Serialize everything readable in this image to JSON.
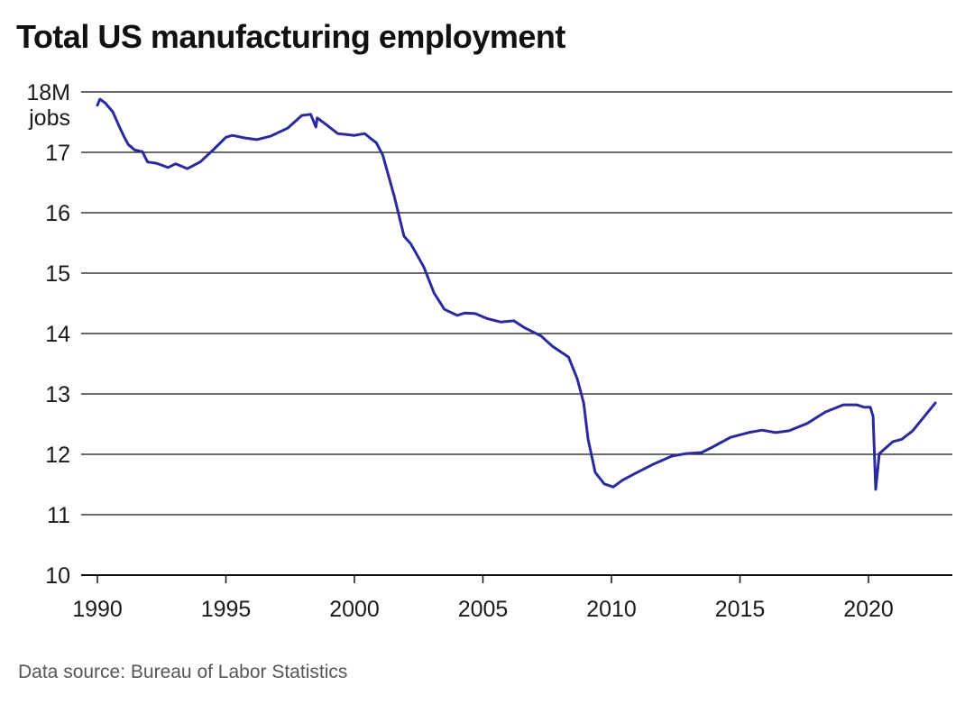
{
  "header": {
    "title": "Total US manufacturing employment"
  },
  "footer": {
    "source": "Data source: Bureau of Labor Statistics"
  },
  "colors": {
    "line": "#2a2a9e",
    "grid": "#111111",
    "source_text": "#555555"
  },
  "axes": {
    "y_unit_label": "jobs",
    "y_ticks": [
      "18M",
      "17",
      "16",
      "15",
      "14",
      "13",
      "12",
      "11",
      "10"
    ],
    "x_ticks": [
      "1990",
      "1995",
      "2000",
      "2005",
      "2010",
      "2015",
      "2020"
    ]
  },
  "chart_data": {
    "type": "line",
    "title": "Total US manufacturing employment",
    "xlabel": "",
    "ylabel": "Millions of jobs",
    "ylim": [
      10,
      18
    ],
    "xlim": [
      1990,
      2022.6
    ],
    "grid": "horizontal",
    "legend": null,
    "y_tick_labels": [
      "10",
      "11",
      "12",
      "13",
      "14",
      "15",
      "16",
      "17",
      "18M jobs"
    ],
    "x_tick_labels": [
      "1990",
      "1995",
      "2000",
      "2005",
      "2010",
      "2015",
      "2020"
    ],
    "source": "Bureau of Labor Statistics",
    "series": [
      {
        "name": "Total US manufacturing employment (millions)",
        "x": [
          1990.0,
          1990.1,
          1990.3,
          1990.6,
          1990.85,
          1991.05,
          1991.2,
          1991.45,
          1991.75,
          1991.95,
          1992.3,
          1992.75,
          1993.05,
          1993.5,
          1994.0,
          1994.55,
          1995.0,
          1995.25,
          1995.7,
          1996.2,
          1996.75,
          1997.4,
          1997.95,
          1998.3,
          1998.5,
          1998.55,
          1998.9,
          1999.35,
          2000.0,
          2000.4,
          2000.6,
          2000.85,
          2001.1,
          2001.55,
          2001.93,
          2002.2,
          2002.7,
          2003.1,
          2003.5,
          2004.0,
          2004.3,
          2004.7,
          2005.15,
          2005.7,
          2006.2,
          2006.6,
          2007.26,
          2007.7,
          2008.33,
          2008.67,
          2008.92,
          2009.09,
          2009.37,
          2009.72,
          2010.07,
          2010.42,
          2010.95,
          2011.65,
          2012.35,
          2012.88,
          2013.51,
          2013.93,
          2014.63,
          2015.33,
          2015.86,
          2016.39,
          2016.91,
          2017.61,
          2018.32,
          2019.02,
          2019.54,
          2019.82,
          2020.07,
          2020.18,
          2020.28,
          2020.42,
          2020.95,
          2021.3,
          2021.72,
          2022.18,
          2022.6
        ],
        "values": [
          17.78,
          17.88,
          17.82,
          17.67,
          17.43,
          17.25,
          17.13,
          17.04,
          17.01,
          16.84,
          16.82,
          16.75,
          16.81,
          16.73,
          16.84,
          17.06,
          17.25,
          17.28,
          17.24,
          17.21,
          17.27,
          17.4,
          17.61,
          17.63,
          17.42,
          17.57,
          17.46,
          17.31,
          17.28,
          17.31,
          17.24,
          17.16,
          16.96,
          16.27,
          15.61,
          15.48,
          15.1,
          14.67,
          14.4,
          14.3,
          14.34,
          14.33,
          14.25,
          14.19,
          14.21,
          14.1,
          13.96,
          13.79,
          13.61,
          13.25,
          12.85,
          12.25,
          11.7,
          11.51,
          11.46,
          11.57,
          11.69,
          11.84,
          11.97,
          12.01,
          12.03,
          12.12,
          12.28,
          12.36,
          12.4,
          12.36,
          12.39,
          12.51,
          12.7,
          12.82,
          12.82,
          12.78,
          12.78,
          12.63,
          11.42,
          12.01,
          12.21,
          12.25,
          12.39,
          12.63,
          12.85
        ]
      }
    ]
  }
}
